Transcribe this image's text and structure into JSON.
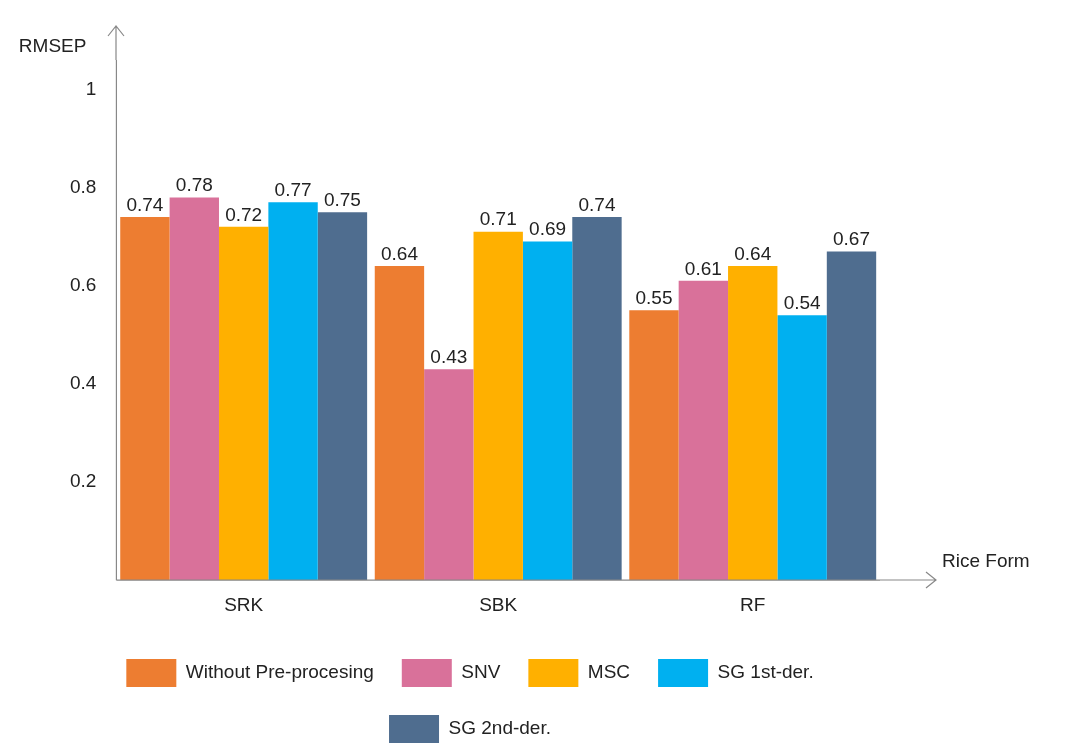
{
  "chart_data": {
    "type": "bar",
    "xlabel": "Rice Form",
    "ylabel": "RMSEP",
    "categories": [
      "SRK",
      "SBK",
      "RF"
    ],
    "series": [
      {
        "name": "Without Pre-procesing",
        "color": "#ed7d31",
        "values": [
          0.74,
          0.64,
          0.55
        ]
      },
      {
        "name": "SNV",
        "color": "#d9719a",
        "values": [
          0.78,
          0.43,
          0.61
        ]
      },
      {
        "name": "MSC",
        "color": "#ffb000",
        "values": [
          0.72,
          0.71,
          0.64
        ]
      },
      {
        "name": "SG 1st-der.",
        "color": "#00b0f0",
        "values": [
          0.77,
          0.69,
          0.54
        ]
      },
      {
        "name": "SG 2nd-der.",
        "color": "#4f6d8f",
        "values": [
          0.75,
          0.74,
          0.67
        ]
      }
    ],
    "ylim": [
      0,
      1.06
    ],
    "yticks": [
      0.2,
      0.4,
      0.6,
      0.8,
      1
    ],
    "data_labels": true,
    "grid": false,
    "legend": "bottom"
  }
}
